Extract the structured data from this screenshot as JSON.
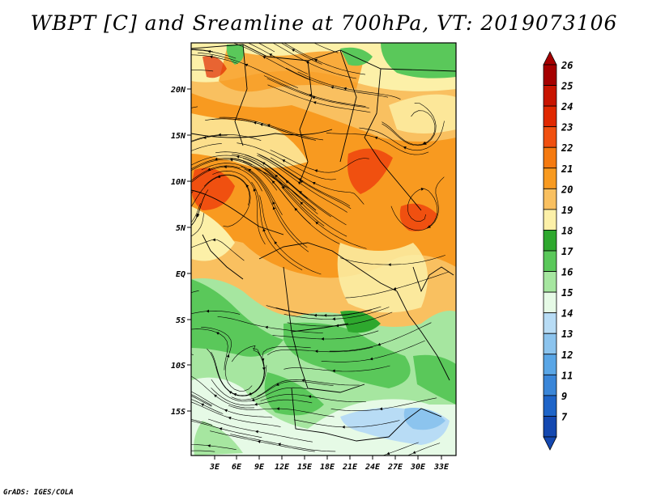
{
  "title": "WBPT [C] and Sreamline at 700hPa, VT: 2019073106",
  "footer": "GrADS: IGES/COLA",
  "map": {
    "lon_range": [
      0,
      35
    ],
    "lat_range": [
      -20,
      24
    ],
    "lat_ticks": [
      {
        "label": "20N"
      },
      {
        "label": "15N"
      },
      {
        "label": "10N"
      },
      {
        "label": "5N"
      },
      {
        "label": "EQ"
      },
      {
        "label": "5S"
      },
      {
        "label": "10S"
      },
      {
        "label": "15S"
      }
    ],
    "lon_ticks": [
      {
        "label": "3E"
      },
      {
        "label": "6E"
      },
      {
        "label": "9E"
      },
      {
        "label": "12E"
      },
      {
        "label": "15E"
      },
      {
        "label": "18E"
      },
      {
        "label": "21E"
      },
      {
        "label": "24E"
      },
      {
        "label": "27E"
      },
      {
        "label": "30E"
      },
      {
        "label": "33E"
      }
    ]
  },
  "colorbar": {
    "levels": [
      {
        "label": "26",
        "color": "#a50000"
      },
      {
        "label": "25",
        "color": "#c81400"
      },
      {
        "label": "24",
        "color": "#e02800"
      },
      {
        "label": "23",
        "color": "#f05010"
      },
      {
        "label": "22",
        "color": "#f57a10"
      },
      {
        "label": "21",
        "color": "#f89a20"
      },
      {
        "label": "20",
        "color": "#f9c060"
      },
      {
        "label": "19",
        "color": "#fcf0a8"
      },
      {
        "label": "18",
        "color": "#2ea82e"
      },
      {
        "label": "17",
        "color": "#5ac85a"
      },
      {
        "label": "16",
        "color": "#a6e6a0"
      },
      {
        "label": "15",
        "color": "#e6fae6"
      },
      {
        "label": "14",
        "color": "#b8dcf5"
      },
      {
        "label": "13",
        "color": "#8cc4ee"
      },
      {
        "label": "12",
        "color": "#5aa6e6"
      },
      {
        "label": "11",
        "color": "#3a86d8"
      },
      {
        "label": "9",
        "color": "#1e64c8"
      },
      {
        "label": "7",
        "color": "#1448b0"
      }
    ]
  }
}
